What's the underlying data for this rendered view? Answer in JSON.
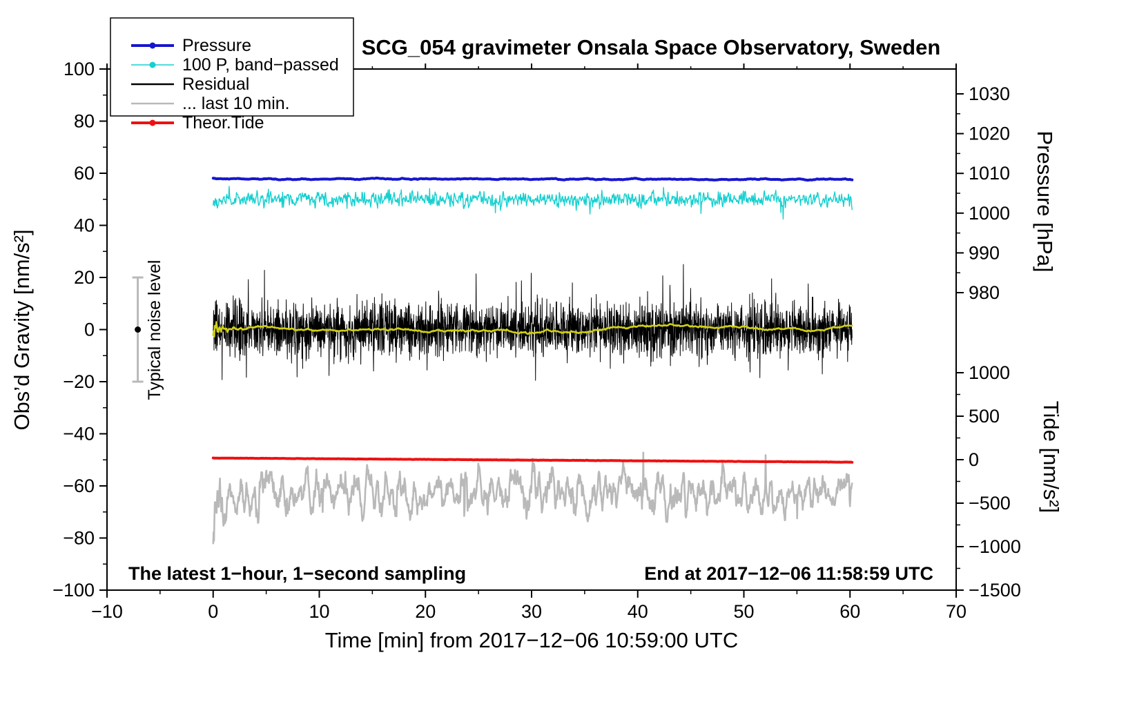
{
  "title": "SCG_054 gravimeter Onsala Space Observatory, Sweden",
  "annotations": {
    "sampling_note": "The latest 1−hour, 1−second sampling",
    "end_note": "End at 2017−12−06 11:58:59 UTC",
    "noise_bar_label": "Typical noise level"
  },
  "axes": {
    "x": {
      "label": "Time [min] from 2017−12−06 10:59:00 UTC",
      "min": -10,
      "max": 70,
      "minor_step": 5,
      "major_tick_values": [
        -10,
        0,
        10,
        20,
        30,
        40,
        50,
        60,
        70
      ],
      "major_tick_labels": [
        "−10",
        "0",
        "10",
        "20",
        "30",
        "40",
        "50",
        "60",
        "70"
      ]
    },
    "y_gravity": {
      "label": "Obs’d Gravity [nm/s²]",
      "min": -100,
      "max": 100,
      "minor_step": 10,
      "major_tick_values": [
        -100,
        -80,
        -60,
        -40,
        -20,
        0,
        20,
        40,
        60,
        80,
        100
      ],
      "major_tick_labels": [
        "−100",
        "−80",
        "−60",
        "−40",
        "−20",
        "0",
        "20",
        "40",
        "60",
        "80",
        "100"
      ]
    },
    "y_pressure": {
      "label": "Pressure [hPa]",
      "min": 980,
      "max": 1030,
      "minor_step": 5,
      "major_tick_values": [
        1030,
        1020,
        1010,
        1000,
        990,
        980
      ],
      "major_tick_labels": [
        "1030",
        "1020",
        "1010",
        "1000",
        "990",
        "980"
      ]
    },
    "y_tide": {
      "label": "Tide [nm/s²]",
      "min": -1500,
      "max": 1000,
      "minor_step": 250,
      "major_tick_values": [
        1000,
        500,
        0,
        -500,
        -1000,
        -1500
      ],
      "major_tick_labels": [
        "1000",
        "500",
        "0",
        "−500",
        "−1000",
        "−1500"
      ]
    }
  },
  "legend": {
    "position": "top-left",
    "items": [
      {
        "label": "Pressure",
        "color": "#1616cf",
        "marker": true,
        "sample_width": 4
      },
      {
        "label": "100 P, band−passed",
        "color": "#16cfcf",
        "marker": true,
        "sample_width": 1.6
      },
      {
        "label": "Residual",
        "color": "#000000",
        "marker": false,
        "sample_width": 2.6
      },
      {
        "label": "... last 10 min.",
        "color": "#b9b9b9",
        "marker": false,
        "sample_width": 2.6
      },
      {
        "label": "Theor.Tide",
        "color": "#ee1111",
        "marker": true,
        "sample_width": 4
      }
    ]
  },
  "noise_bar": {
    "x_min": -7.1,
    "center_value": 0,
    "half_range": 20,
    "bar_color": "#b9b9b9",
    "dot_color": "#000000"
  },
  "chart_data": {
    "type": "line",
    "x_unit": "min",
    "x_range": [
      0,
      60.2
    ],
    "axis_ranges": {
      "gravity": [
        -100,
        100
      ],
      "pressure_hPa": [
        980,
        1030
      ],
      "tide_nms2": [
        -1500,
        1000
      ]
    },
    "grid": false,
    "legend_position": "top-left",
    "readings": {
      "pressure_mean_hPa": 1008.5,
      "pressure_display_level_gravity_units": 57.8,
      "bandpassed_pressure_display_level": 50,
      "residual_mean": 0,
      "residual_peak_amplitude": 17,
      "theor_tide_start_nms2": 25,
      "theor_tide_end_nms2": -40,
      "lowpass_residual_display_level": -62.5
    },
    "series": [
      {
        "name": "Pressure",
        "color": "#1616cf",
        "width": 4,
        "n": 900,
        "seed": 11,
        "start": 57.9,
        "end": 57.6,
        "sigma": 1,
        "smooth": 12,
        "gain": 0.5
      },
      {
        "name": "100 P, band−passed",
        "color": "#16cfcf",
        "width": 1.4,
        "n": 1400,
        "seed": 22,
        "mean": 50,
        "sigma": 1.4,
        "smooth": 2,
        "gain": 1.3,
        "spike_prob": 0.012,
        "spike_scale": 3
      },
      {
        "name": "... last 10 min.",
        "color": "#b9b9b9",
        "width": 2.6,
        "n": 1500,
        "seed": 66,
        "mean": -62.5,
        "sigma": 5.5,
        "smooth": 8,
        "gain": 2.3,
        "spike_prob": 0.008,
        "spike_scale": 2.0
      },
      {
        "name": "Theor.Tide",
        "color": "#ee1111",
        "width": 4,
        "n": 400,
        "seed": 55,
        "start": -49.3,
        "end": -50.9,
        "sigma": 0.03,
        "smooth": 1,
        "gain": 1
      },
      {
        "name": "Residual",
        "color": "#000000",
        "width": 1,
        "n": 3000,
        "seed": 33,
        "mean": 0,
        "sigma": 4.8,
        "smooth": 1,
        "gain": 1,
        "spike_prob": 0.03,
        "spike_scale": 2.5
      },
      {
        "name": "Residual running mean",
        "color": "#cfcf16",
        "width": 2.6,
        "n": 1200,
        "seed": 44,
        "mean": 0.3,
        "sigma": 4,
        "smooth": 150,
        "gain": 3
      }
    ]
  }
}
